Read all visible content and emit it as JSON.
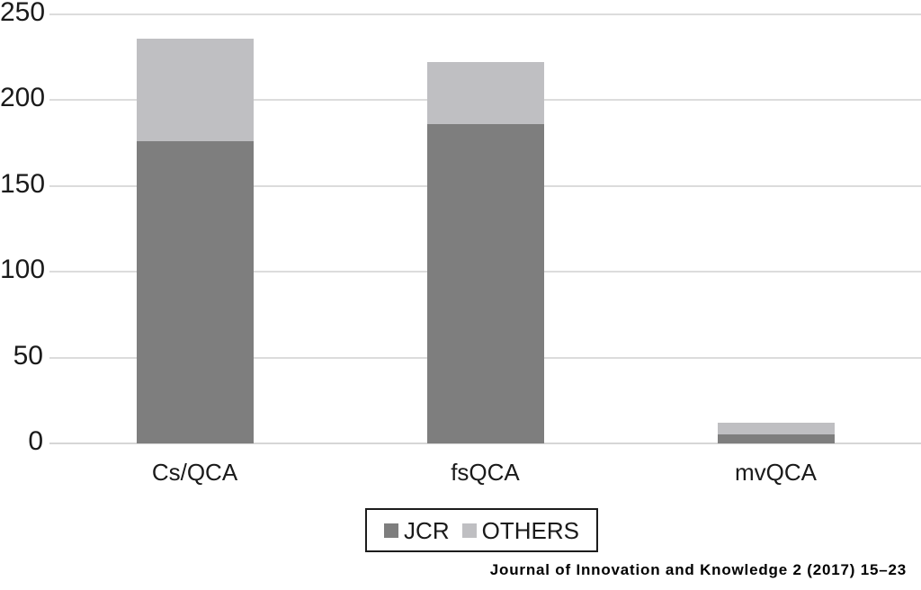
{
  "chart_data": {
    "type": "bar",
    "stacked": true,
    "categories": [
      "Cs/QCA",
      "fsQCA",
      "mvQCA"
    ],
    "series": [
      {
        "name": "JCR",
        "color": "#7e7e7e",
        "values": [
          176,
          186,
          5
        ]
      },
      {
        "name": "OTHERS",
        "color": "#bfbfc2",
        "values": [
          60,
          36,
          7
        ]
      }
    ],
    "totals": [
      236,
      222,
      12
    ],
    "title": "",
    "xlabel": "",
    "ylabel": "",
    "ylim": [
      0,
      250
    ],
    "yticks": [
      0,
      50,
      100,
      150,
      200,
      250
    ],
    "grid": true,
    "gridline_color": "#dcdcdc",
    "legend_position": "bottom"
  },
  "legend": {
    "items": [
      {
        "label": "JCR",
        "color": "#7e7e7e"
      },
      {
        "label": "OTHERS",
        "color": "#bfbfc2"
      }
    ]
  },
  "caption": "Journal of Innovation and Knowledge 2 (2017) 15–23"
}
